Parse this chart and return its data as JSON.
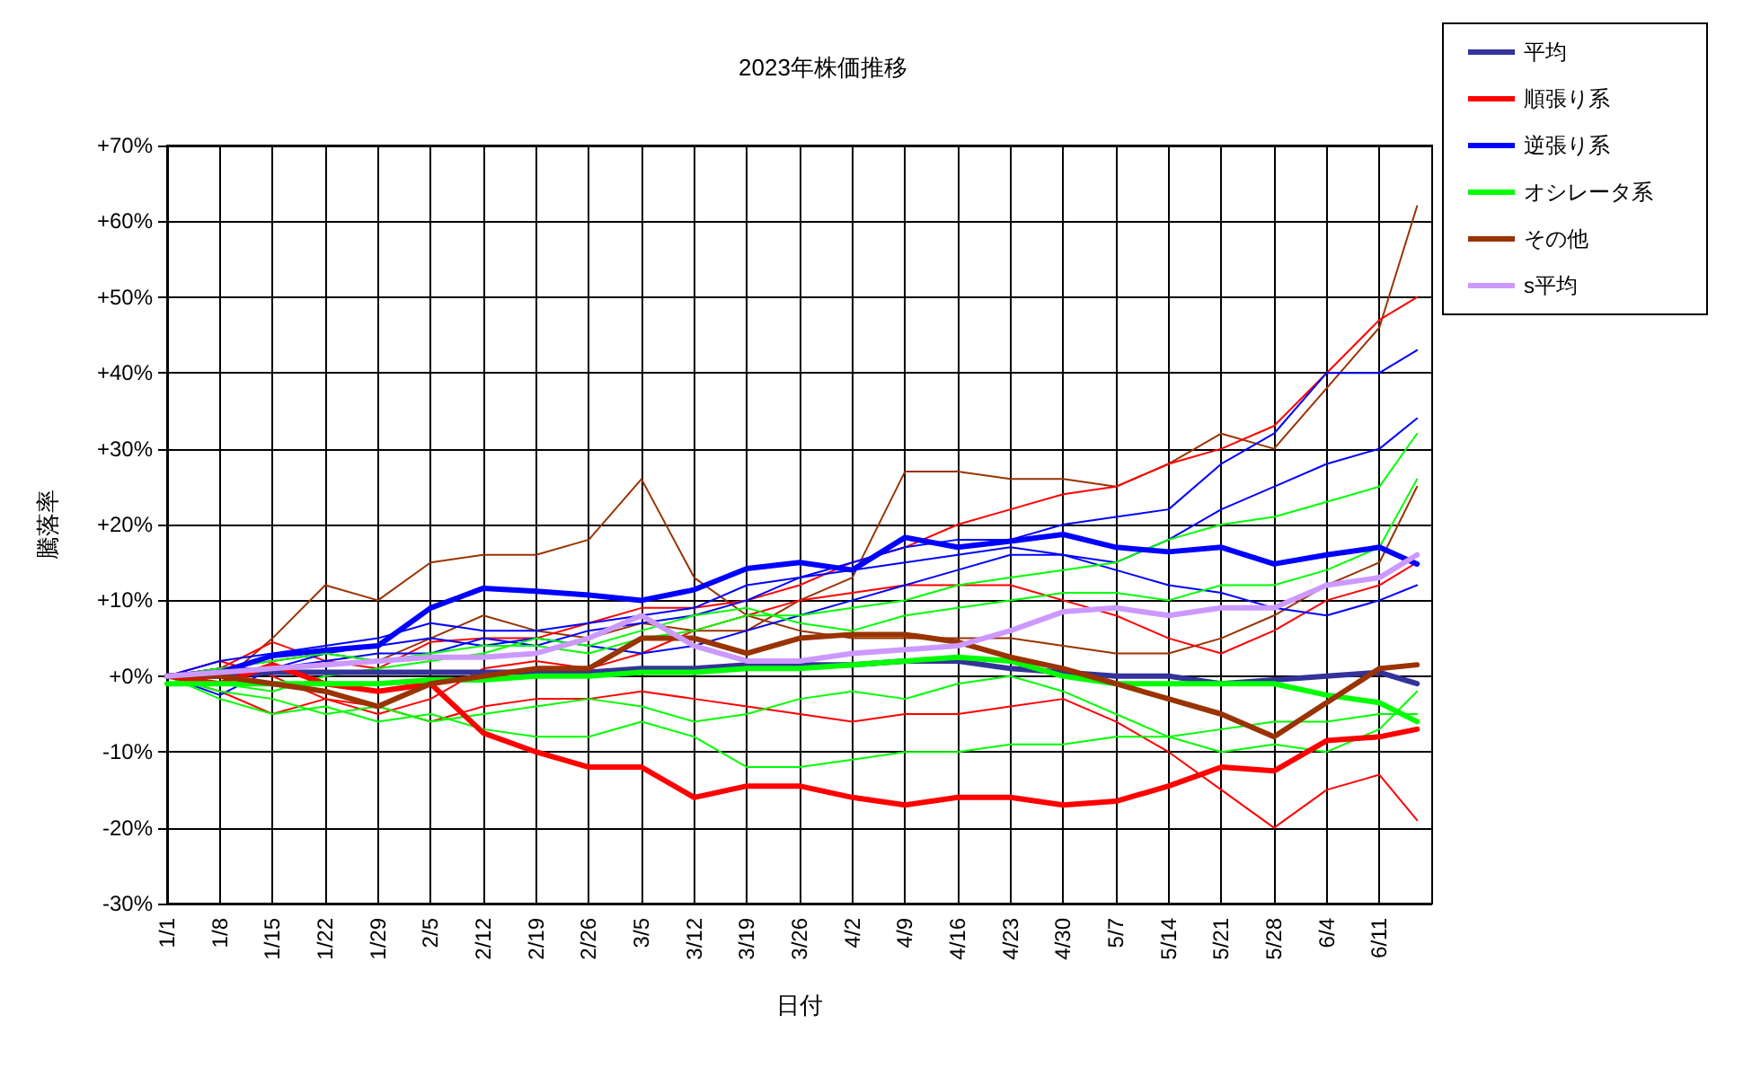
{
  "chart_data": {
    "type": "line",
    "title": "2023年株価推移",
    "xlabel": "日付",
    "ylabel": "騰落率",
    "x": [
      "--01-01",
      "--01-08",
      "--01-15",
      "--01-22",
      "--01-29",
      "--02-05",
      "--02-12",
      "--02-19",
      "--02-26",
      "--03-05",
      "--03-12",
      "--03-19",
      "--03-26",
      "--04-02",
      "--04-09",
      "--04-16",
      "--04-23",
      "--04-30",
      "--05-07",
      "--05-14",
      "--05-21",
      "--05-28",
      "--06-04",
      "--06-11",
      "--06-16"
    ],
    "xlim": [
      "--01-01",
      "--06-18"
    ],
    "xticks": [
      {
        "value": "--01-01",
        "label": "1/1"
      },
      {
        "value": "--01-08",
        "label": "1/8"
      },
      {
        "value": "--01-15",
        "label": "1/15"
      },
      {
        "value": "--01-22",
        "label": "1/22"
      },
      {
        "value": "--01-29",
        "label": "1/29"
      },
      {
        "value": "--02-05",
        "label": "2/5"
      },
      {
        "value": "--02-12",
        "label": "2/12"
      },
      {
        "value": "--02-19",
        "label": "2/19"
      },
      {
        "value": "--02-26",
        "label": "2/26"
      },
      {
        "value": "--03-05",
        "label": "3/5"
      },
      {
        "value": "--03-12",
        "label": "3/12"
      },
      {
        "value": "--03-19",
        "label": "3/19"
      },
      {
        "value": "--03-26",
        "label": "3/26"
      },
      {
        "value": "--04-02",
        "label": "4/2"
      },
      {
        "value": "--04-09",
        "label": "4/9"
      },
      {
        "value": "--04-16",
        "label": "4/16"
      },
      {
        "value": "--04-23",
        "label": "4/23"
      },
      {
        "value": "--04-30",
        "label": "4/30"
      },
      {
        "value": "--05-07",
        "label": "5/7"
      },
      {
        "value": "--05-14",
        "label": "5/14"
      },
      {
        "value": "--05-21",
        "label": "5/21"
      },
      {
        "value": "--05-28",
        "label": "5/28"
      },
      {
        "value": "--06-04",
        "label": "6/4"
      },
      {
        "value": "--06-11",
        "label": "6/11"
      }
    ],
    "ylim": [
      -30,
      70
    ],
    "yticks": [
      {
        "value": -30,
        "label": "-30%"
      },
      {
        "value": -20,
        "label": "-20%"
      },
      {
        "value": -10,
        "label": "-10%"
      },
      {
        "value": 0,
        "label": "+0%"
      },
      {
        "value": 10,
        "label": "+10%"
      },
      {
        "value": 20,
        "label": "+20%"
      },
      {
        "value": 30,
        "label": "+30%"
      },
      {
        "value": 40,
        "label": "+40%"
      },
      {
        "value": 50,
        "label": "+50%"
      },
      {
        "value": 60,
        "label": "+60%"
      },
      {
        "value": 70,
        "label": "+70%"
      }
    ],
    "grid": true,
    "legend": "top right",
    "marker": "none",
    "line_style": "solid",
    "series": [
      {
        "color": "#993300",
        "values": [
          0,
          1,
          2,
          3,
          2,
          5,
          8,
          6,
          5,
          7,
          6,
          6,
          10,
          13,
          27,
          27,
          26,
          26,
          25,
          28,
          32,
          30,
          38,
          46,
          62
        ]
      },
      {
        "color": "#993300",
        "values": [
          0,
          -1,
          5,
          12,
          10,
          15,
          16,
          16,
          18,
          26,
          13,
          8,
          6,
          5,
          5,
          5,
          5,
          4,
          3,
          3,
          5,
          8,
          12,
          15,
          25
        ]
      },
      {
        "color": "#ff0000",
        "values": [
          0,
          1,
          4.5,
          2,
          1,
          4.5,
          5,
          5,
          7,
          9,
          9,
          10,
          12,
          15,
          17,
          20,
          22,
          24,
          25,
          28,
          30,
          33,
          40,
          47,
          50
        ]
      },
      {
        "color": "#ff0000",
        "values": [
          0,
          -2,
          -5,
          -3,
          -4,
          -6,
          -4,
          -3,
          -3,
          -2,
          -3,
          -4,
          -5,
          -6,
          -5,
          -5,
          -4,
          -3,
          -6,
          -10,
          -15,
          -20,
          -15,
          -13,
          -19
        ]
      },
      {
        "color": "#ff0000",
        "values": [
          0,
          2,
          0,
          -3,
          -5,
          -3,
          1,
          2,
          1,
          3,
          6,
          8,
          10,
          11,
          12,
          12,
          12,
          10,
          8,
          5,
          3,
          6,
          10,
          12,
          15
        ]
      },
      {
        "color": "#0000ff",
        "values": [
          0,
          2,
          3,
          4,
          5,
          7,
          6,
          6,
          7,
          8,
          9,
          12,
          13,
          15,
          17,
          18,
          18,
          20,
          21,
          22,
          28,
          32,
          40,
          40,
          43
        ]
      },
      {
        "color": "#0000ff",
        "values": [
          0,
          -2.5,
          1,
          3,
          4,
          5,
          4,
          5,
          4,
          3,
          4,
          6,
          8,
          10,
          12,
          14,
          16,
          16,
          15,
          18,
          22,
          25,
          28,
          30,
          34
        ]
      },
      {
        "color": "#0000ff",
        "values": [
          0,
          1,
          1,
          2,
          3,
          3,
          5,
          4,
          6,
          7,
          8,
          10,
          13,
          14,
          15,
          16,
          17,
          16,
          14,
          12,
          11,
          9,
          8,
          10,
          12
        ]
      },
      {
        "color": "#00ff00",
        "values": [
          0,
          1,
          2,
          3,
          2,
          3,
          4,
          4,
          3,
          5,
          6,
          8,
          8,
          9,
          10,
          12,
          13,
          14,
          15,
          18,
          20,
          21,
          23,
          25,
          32
        ]
      },
      {
        "color": "#00ff00",
        "values": [
          0,
          -3,
          -5,
          -4,
          -6,
          -5,
          -7,
          -8,
          -8,
          -6,
          -8,
          -12,
          -12,
          -11,
          -10,
          -10,
          -9,
          -9,
          -8,
          -8,
          -7,
          -6,
          -6,
          -5,
          -5
        ]
      },
      {
        "color": "#00ff00",
        "values": [
          0,
          -1,
          -2,
          0,
          1,
          2,
          3,
          5,
          4,
          6,
          8,
          9,
          7,
          6,
          8,
          9,
          10,
          11,
          11,
          10,
          12,
          12,
          14,
          17,
          26
        ]
      },
      {
        "color": "#00ff00",
        "values": [
          0,
          -2,
          -3,
          -5,
          -4,
          -6,
          -5,
          -4,
          -3,
          -4,
          -6,
          -5,
          -3,
          -2,
          -3,
          -1,
          0,
          -2,
          -5,
          -8,
          -10,
          -9,
          -10,
          -7,
          -2
        ]
      },
      {
        "name": "平均",
        "color": "#333399",
        "values": [
          0,
          0,
          0.5,
          0.5,
          0.5,
          0.5,
          0.5,
          0.5,
          0.5,
          1,
          1,
          1.5,
          1.5,
          1.5,
          2,
          2,
          1,
          0.5,
          0,
          0,
          -1,
          -0.5,
          0,
          0.5,
          -1
        ]
      },
      {
        "name": "順張り系",
        "color": "#ff0000",
        "values": [
          0,
          -1,
          1.5,
          -1,
          -2,
          -1,
          -7.5,
          -10,
          -12,
          -12,
          -16,
          -14.5,
          -14.5,
          -16,
          -17,
          -16,
          -16,
          -17,
          -16.5,
          -14.5,
          -12,
          -12.5,
          -8.5,
          -8,
          -7
        ]
      },
      {
        "name": "逆張り系",
        "color": "#0000ff",
        "values": [
          0,
          0.5,
          2.7,
          3.4,
          4,
          9,
          11.6,
          11.2,
          10.7,
          10,
          11.4,
          14.2,
          15,
          14,
          18.3,
          17,
          17.8,
          18.7,
          17,
          16.4,
          17,
          14.8,
          16,
          17,
          14.8
        ]
      },
      {
        "name": "オシレータ系",
        "color": "#00ff00",
        "values": [
          -1,
          -1,
          -1,
          -1,
          -1,
          -0.5,
          -0.5,
          0,
          0,
          0.5,
          0.5,
          1,
          1,
          1.5,
          2,
          2.5,
          2,
          0,
          -1,
          -1,
          -1,
          -1,
          -2.5,
          -3.5,
          -6
        ]
      },
      {
        "name": "その他",
        "color": "#993300",
        "values": [
          0,
          0,
          -1,
          -2,
          -4,
          -1,
          0,
          1,
          1,
          5,
          5,
          3,
          5,
          5.5,
          5.5,
          4.5,
          2.5,
          1,
          -1,
          -3,
          -5,
          -8,
          -3.5,
          1,
          1.5
        ]
      },
      {
        "name": "s平均",
        "color": "#cc99ff",
        "values": [
          0,
          0.5,
          1,
          1.5,
          2,
          2.5,
          2.5,
          3,
          5,
          8,
          4,
          2,
          2,
          3,
          3.5,
          4,
          6,
          8.5,
          9,
          8,
          9,
          9,
          12,
          13,
          16
        ]
      }
    ]
  }
}
